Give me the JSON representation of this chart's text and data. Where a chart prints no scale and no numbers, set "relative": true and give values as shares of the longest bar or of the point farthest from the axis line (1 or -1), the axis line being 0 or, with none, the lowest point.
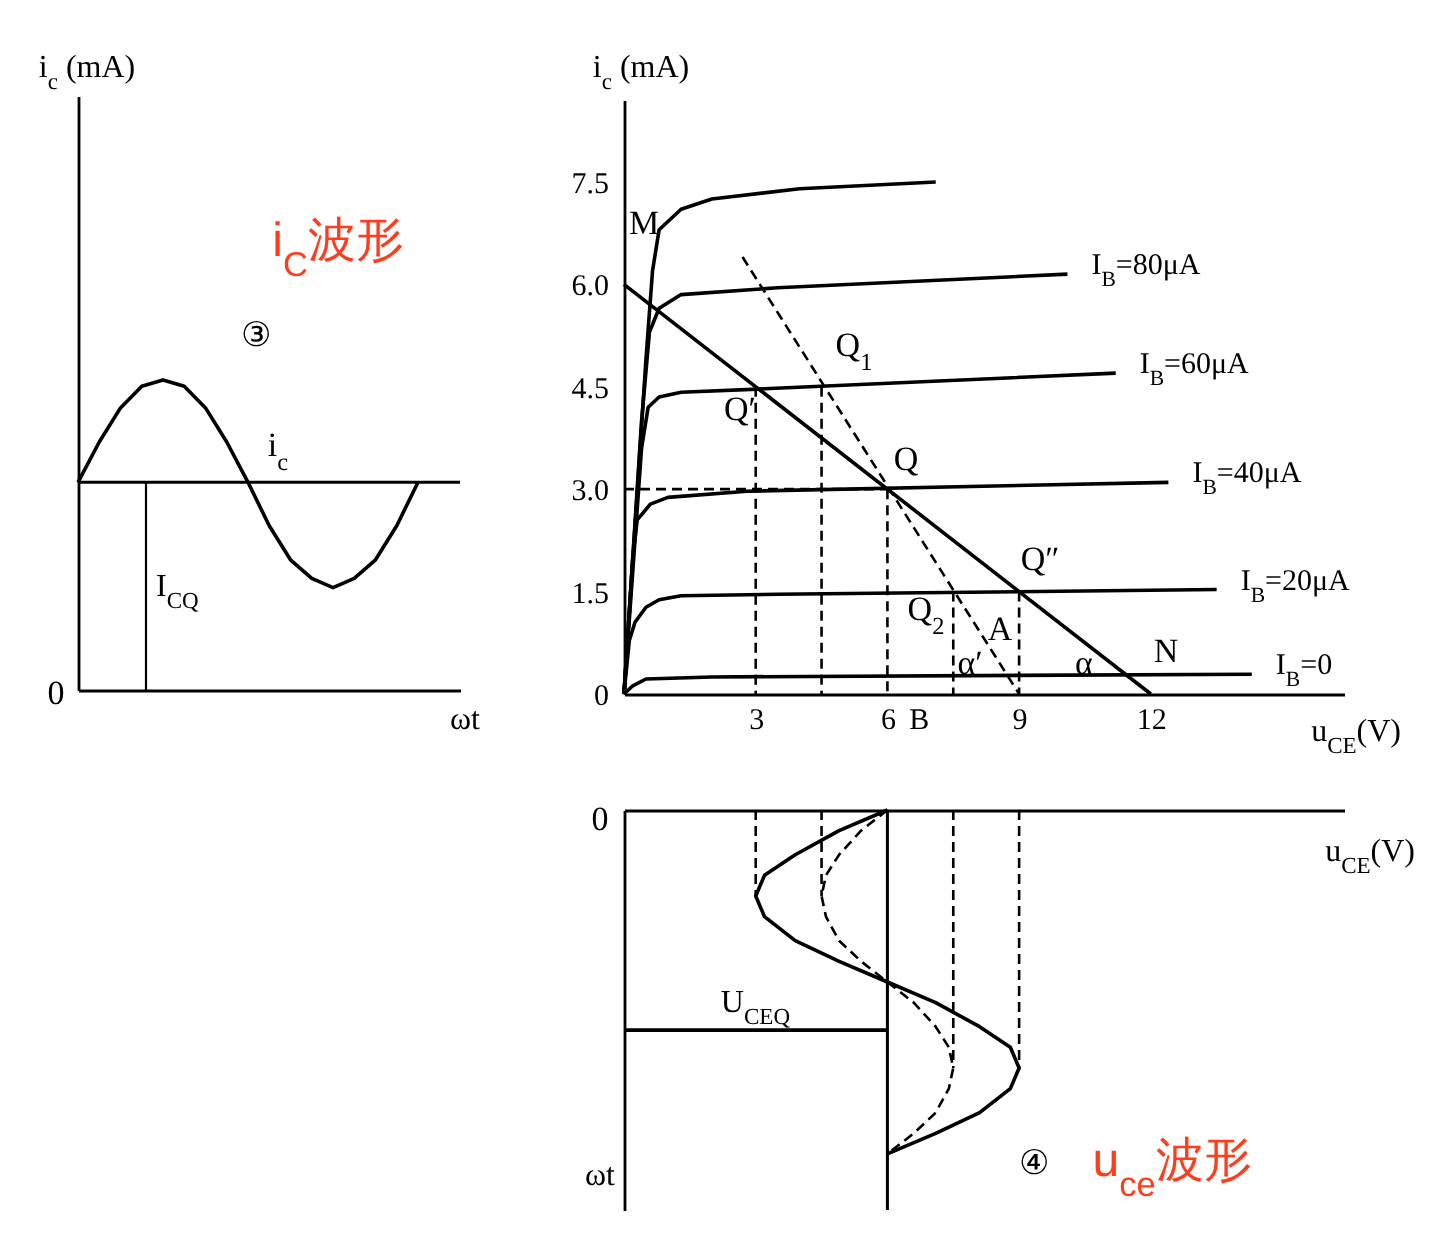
{
  "chart_data": [
    {
      "type": "line",
      "title": "i$_{C}$波形",
      "xlabel": "ωt",
      "ylabel": "i$_{c}$ (mA)",
      "categories": [
        null,
        null,
        null,
        null,
        null,
        null,
        null,
        null,
        null,
        null,
        null,
        null,
        null,
        null,
        null,
        null,
        null
      ],
      "relative": true,
      "series": [
        {
          "color": "#000000",
          "values": [
            0.67,
            0.8,
            0.91,
            0.98,
            1,
            0.98,
            0.91,
            0.8,
            0.67,
            0.53,
            0.42,
            0.36,
            0.33,
            0.36,
            0.42,
            0.53,
            0.67
          ]
        }
      ],
      "ref_lines": [
        {
          "axis": "y",
          "value": 0.67,
          "label": "I$_{CQ}$"
        }
      ],
      "annotations": [
        "③",
        "i$_{c}$",
        "0"
      ]
    },
    {
      "type": "line",
      "xlabel": "u$_{CE}$(V)",
      "ylabel": "i$_{c}$ (mA)",
      "xlim": [
        0,
        16.4
      ],
      "xticks": [
        3,
        6,
        {
          "value": 6.7,
          "label": "B"
        },
        9,
        12
      ],
      "ylim": [
        0,
        8.7
      ],
      "yticks": [
        0,
        1.5,
        {
          "value": 3,
          "label": "3.0"
        },
        4.5,
        {
          "value": 6,
          "label": "6.0"
        },
        7.5
      ],
      "series": [
        {
          "color": "#000000",
          "x": [
            0,
            0.5,
            0.65,
            0.8,
            1.3,
            2,
            4,
            7.1
          ],
          "values": [
            0,
            4.9,
            6.2,
            6.8,
            7.1,
            7.25,
            7.4,
            7.5
          ]
        },
        {
          "name": "I$_{B}$=80μA",
          "color": "#000000",
          "x": [
            0,
            0.4,
            0.58,
            0.8,
            1.3,
            3.5,
            10.1
          ],
          "values": [
            0,
            4,
            5.3,
            5.65,
            5.85,
            5.95,
            6.15
          ]
        },
        {
          "name": "I$_{B}$=60μA",
          "color": "#000000",
          "x": [
            0,
            0.4,
            0.55,
            0.8,
            1.3,
            3.2,
            11.2
          ],
          "values": [
            0,
            3.6,
            4.2,
            4.35,
            4.42,
            4.47,
            4.7
          ]
        },
        {
          "name": "I$_{B}$=40μA",
          "color": "#000000",
          "x": [
            0,
            0.2,
            0.3,
            0.6,
            1,
            2.8,
            12.4
          ],
          "values": [
            0,
            2,
            2.55,
            2.78,
            2.88,
            2.97,
            3.1
          ]
        },
        {
          "name": "I$_{B}$=20μA",
          "color": "#000000",
          "x": [
            0,
            0.12,
            0.25,
            0.5,
            0.8,
            1.3,
            3.5,
            13.5
          ],
          "values": [
            0,
            0.78,
            1.05,
            1.27,
            1.38,
            1.44,
            1.46,
            1.53
          ]
        },
        {
          "name": "I$_{B}$=0",
          "color": "#000000",
          "x": [
            0,
            0.2,
            0.5,
            2,
            14.3
          ],
          "values": [
            0,
            0.12,
            0.22,
            0.25,
            0.29
          ]
        },
        {
          "color": "#000000",
          "x": [
            0,
            12
          ],
          "values": [
            6,
            0
          ]
        },
        {
          "color": "#000000",
          "line_style": "dashed",
          "x": [
            2.7,
            9
          ],
          "values": [
            6.4,
            0
          ]
        },
        {
          "color": "#000000",
          "line_style": "dashed",
          "x": [
            0,
            6
          ],
          "values": [
            3,
            3
          ]
        },
        {
          "color": "#000000",
          "line_style": "dashed",
          "x": [
            3,
            3
          ],
          "values": [
            4.5,
            0
          ]
        },
        {
          "color": "#000000",
          "line_style": "dashed",
          "x": [
            4.5,
            4.5
          ],
          "values": [
            4.5,
            0
          ]
        },
        {
          "color": "#000000",
          "line_style": "dashed",
          "x": [
            6,
            6
          ],
          "values": [
            3,
            0
          ]
        },
        {
          "color": "#000000",
          "line_style": "dashed",
          "x": [
            7.5,
            7.5
          ],
          "values": [
            1.5,
            0
          ]
        },
        {
          "color": "#000000",
          "line_style": "dashed",
          "x": [
            9,
            9
          ],
          "values": [
            1.5,
            0
          ]
        }
      ],
      "annotations": [
        "M",
        "Q$_{1}$",
        "Q′",
        "Q",
        "Q″",
        "Q$_{2}$",
        "A",
        "α′",
        "α",
        "N"
      ]
    },
    {
      "type": "line",
      "title": "u$_{ce}$波形",
      "xlabel": "u$_{CE}$(V)",
      "ylabel": "ωt",
      "relative": true,
      "xlim": [
        0,
        16.4
      ],
      "series": [
        {
          "color": "#000000",
          "x": [
            6,
            4.9,
            3.9,
            3.2,
            3,
            3.2,
            3.9,
            4.9,
            6,
            7.1,
            8.1,
            8.8,
            9,
            8.8,
            8.1,
            7.1,
            6
          ],
          "values": [
            0,
            -0.06,
            -0.13,
            -0.19,
            -0.25,
            -0.31,
            -0.38,
            -0.44,
            -0.5,
            -0.56,
            -0.63,
            -0.69,
            -0.75,
            -0.81,
            -0.88,
            -0.94,
            -1
          ]
        },
        {
          "color": "#000000",
          "line_style": "dashed",
          "x": [
            6,
            5.4,
            4.9,
            4.6,
            4.5,
            4.6,
            4.9,
            5.4,
            6,
            6.6,
            7.1,
            7.4,
            7.5,
            7.4,
            7.1,
            6.6,
            6
          ],
          "values": [
            0,
            -0.06,
            -0.13,
            -0.19,
            -0.25,
            -0.31,
            -0.38,
            -0.44,
            -0.5,
            -0.56,
            -0.63,
            -0.69,
            -0.75,
            -0.81,
            -0.88,
            -0.94,
            -1
          ]
        },
        {
          "color": "#000000",
          "line_style": "dashed",
          "x": [
            3,
            3
          ],
          "values": [
            0,
            -0.25
          ]
        },
        {
          "color": "#000000",
          "line_style": "dashed",
          "x": [
            4.5,
            4.5
          ],
          "values": [
            0,
            -0.25
          ]
        },
        {
          "color": "#000000",
          "line_style": "dashed",
          "x": [
            7.5,
            7.5
          ],
          "values": [
            0,
            -0.75
          ]
        },
        {
          "color": "#000000",
          "line_style": "dashed",
          "x": [
            9,
            9
          ],
          "values": [
            0,
            -0.75
          ]
        },
        {
          "color": "#000000",
          "x": [
            0,
            6
          ],
          "values": [
            -0.64,
            -0.64
          ]
        }
      ],
      "ref_lines": [
        {
          "axis": "x",
          "value": 6,
          "label": "U$_{CEQ}$"
        }
      ],
      "annotations": [
        "0",
        "④"
      ]
    }
  ]
}
